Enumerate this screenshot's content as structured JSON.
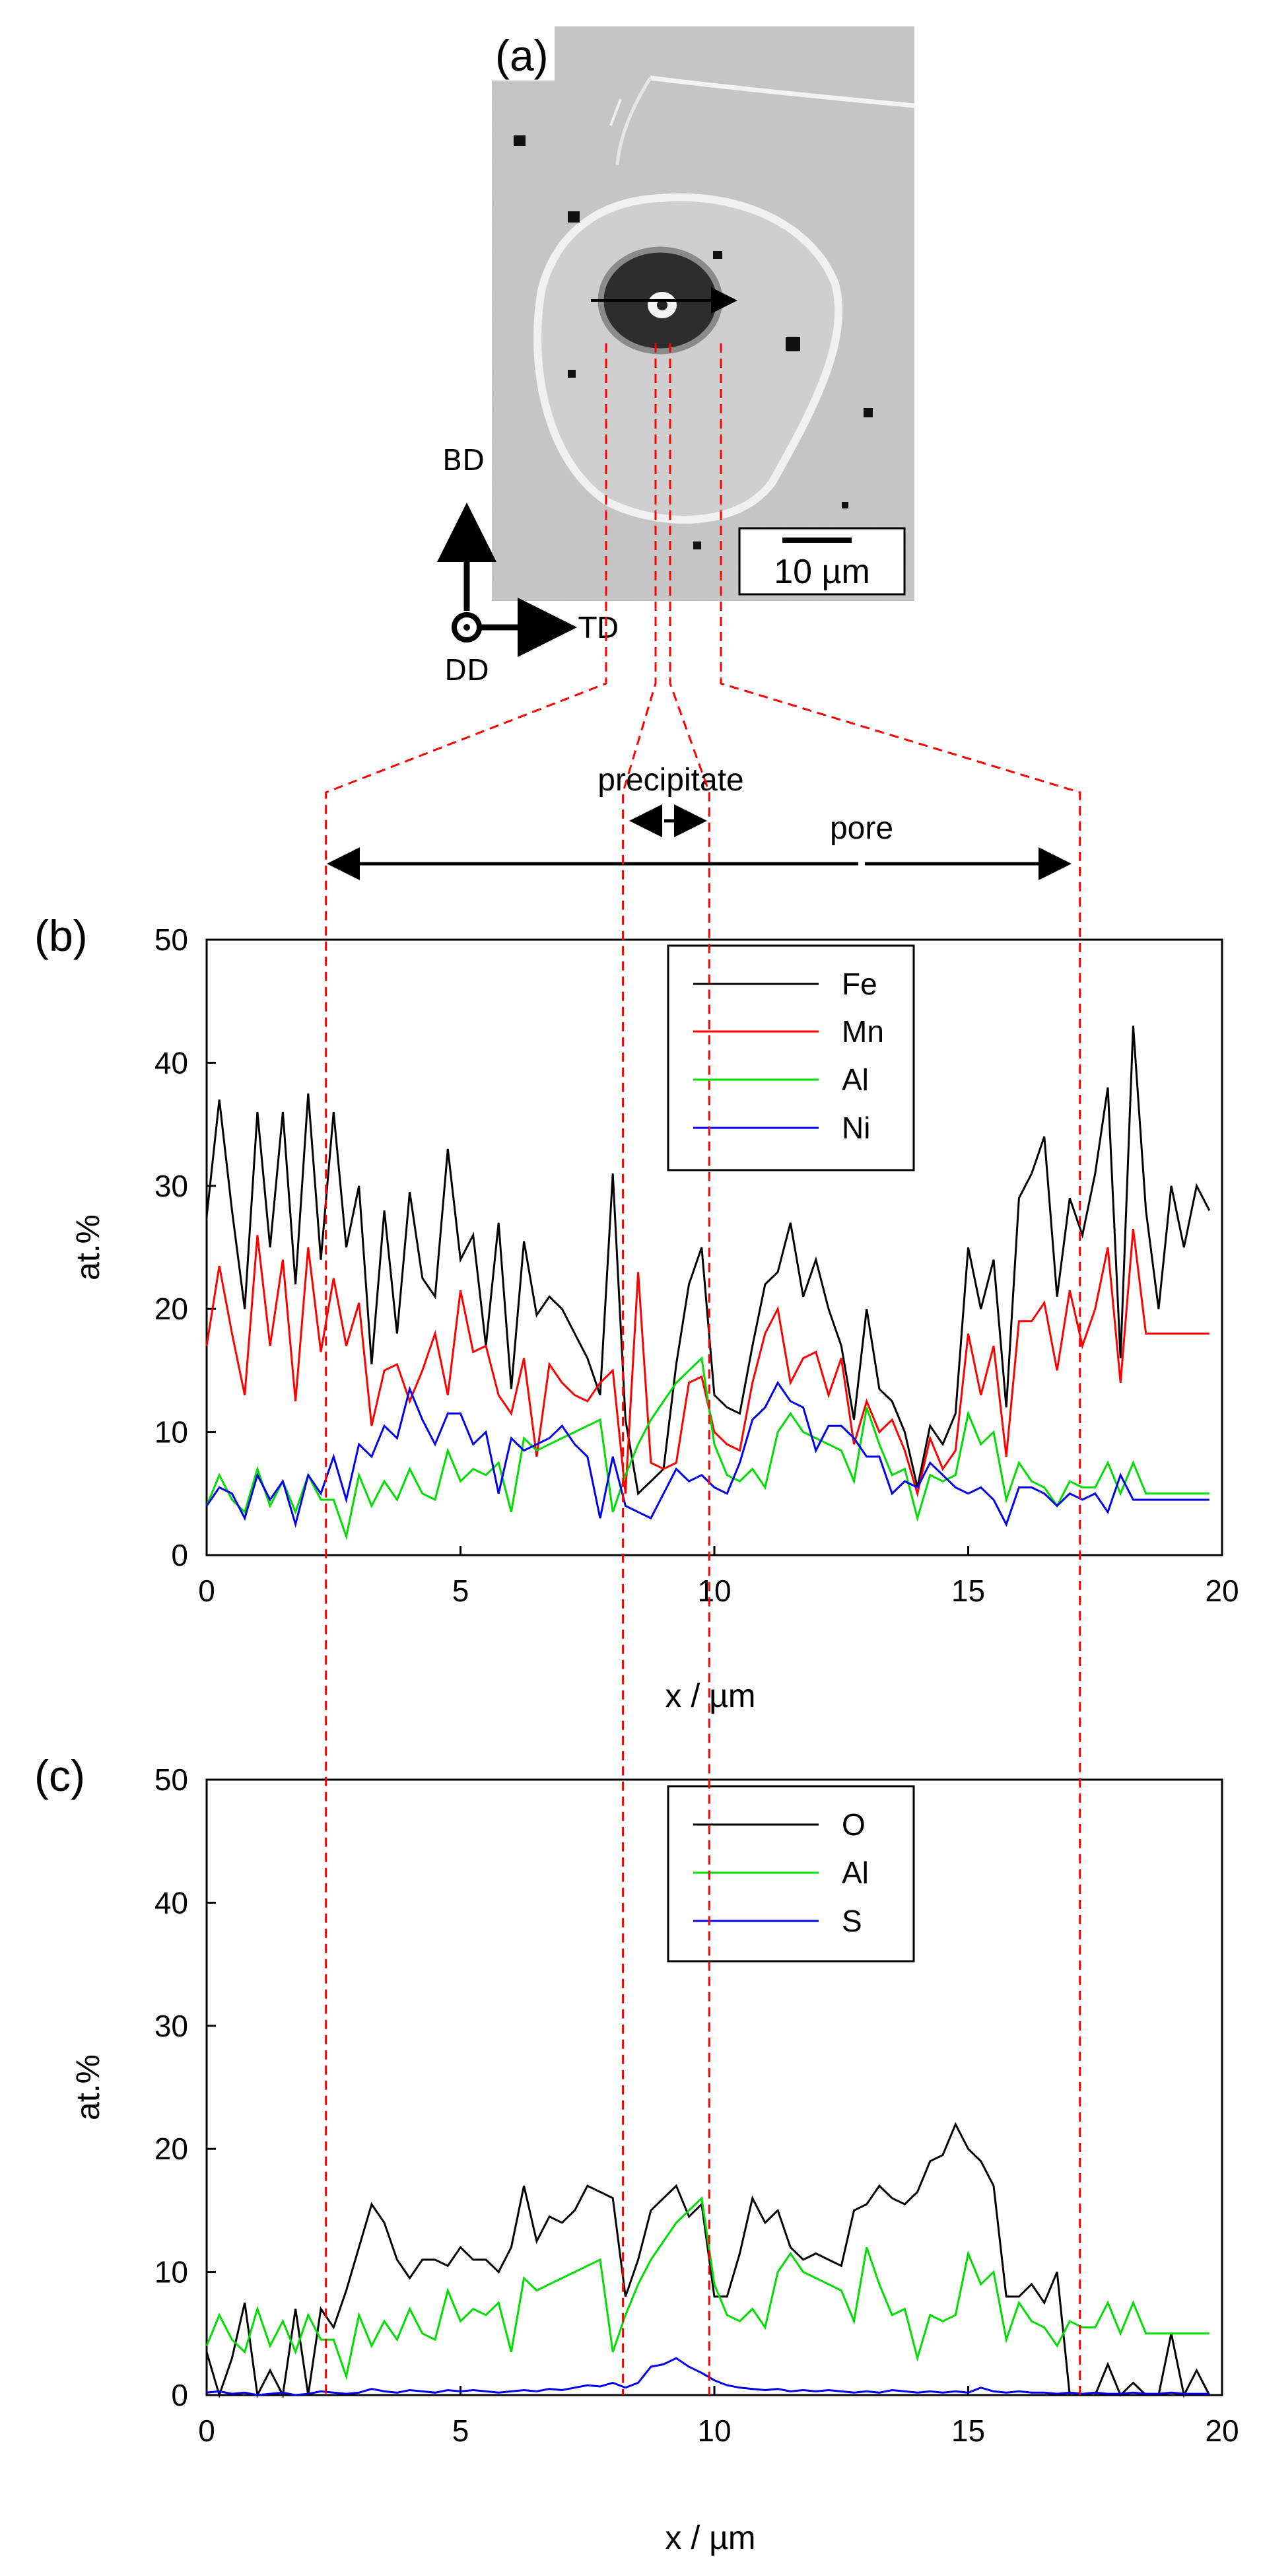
{
  "panel_a": {
    "label": "(a)",
    "scale_bar": "10 µm",
    "axes": {
      "up": "BD",
      "right": "TD",
      "out": "DD"
    }
  },
  "annotations": {
    "precipitate": "precipitate",
    "pore": "pore"
  },
  "boundaries_x": [
    2.35,
    8.2,
    9.9,
    17.2
  ],
  "colors": {
    "Fe": "#000000",
    "Mn": "#ff0000",
    "Al": "#00dd00",
    "Ni": "#0000ee",
    "O": "#000000",
    "S": "#0000ee",
    "guide": "#ff0000"
  },
  "chart_data": [
    {
      "type": "line",
      "label": "(b)",
      "xlabel": "x / µm",
      "ylabel": "at.%",
      "xlim": [
        0,
        20
      ],
      "ylim": [
        0,
        50
      ],
      "xticks": [
        0,
        5,
        10,
        15,
        20
      ],
      "yticks": [
        0,
        10,
        20,
        30,
        40,
        50
      ],
      "legend_position": "top-center",
      "x": [
        0.0,
        0.25,
        0.5,
        0.75,
        1.0,
        1.25,
        1.5,
        1.75,
        2.0,
        2.25,
        2.5,
        2.75,
        3.0,
        3.25,
        3.5,
        3.75,
        4.0,
        4.25,
        4.5,
        4.75,
        5.0,
        5.25,
        5.5,
        5.75,
        6.0,
        6.25,
        6.5,
        6.75,
        7.0,
        7.25,
        7.5,
        7.75,
        8.0,
        8.25,
        8.5,
        8.75,
        9.0,
        9.25,
        9.5,
        9.75,
        10.0,
        10.25,
        10.5,
        10.75,
        11.0,
        11.25,
        11.5,
        11.75,
        12.0,
        12.25,
        12.5,
        12.75,
        13.0,
        13.25,
        13.5,
        13.75,
        14.0,
        14.25,
        14.5,
        14.75,
        15.0,
        15.25,
        15.5,
        15.75,
        16.0,
        16.25,
        16.5,
        16.75,
        17.0,
        17.25,
        17.5,
        17.75,
        18.0,
        18.25,
        18.5,
        18.75,
        19.0,
        19.25,
        19.5,
        19.75
      ],
      "series": [
        {
          "name": "Fe",
          "values": [
            27.5,
            37.0,
            28.0,
            20.0,
            36.0,
            25.0,
            36.0,
            22.0,
            37.5,
            24.0,
            36.0,
            25.0,
            30.0,
            15.5,
            28.0,
            18.0,
            29.5,
            22.5,
            21.0,
            33.0,
            24.0,
            26.0,
            17.0,
            27.0,
            13.5,
            25.5,
            19.5,
            21.0,
            20.0,
            18.0,
            16.0,
            13.0,
            31.0,
            11.0,
            5.0,
            6.0,
            7.0,
            15.5,
            22.0,
            25.0,
            13.0,
            12.0,
            11.5,
            17.0,
            22.0,
            23.0,
            27.0,
            21.0,
            24.0,
            20.0,
            17.0,
            11.0,
            20.0,
            13.5,
            12.5,
            10.0,
            5.5,
            10.5,
            9.0,
            11.5,
            25.0,
            20.0,
            24.0,
            12.0,
            29.0,
            31.0,
            34.0,
            21.0,
            29.0,
            26.0,
            31.0,
            38.0,
            16.0,
            43.0,
            28.0,
            20.0,
            30.0,
            25.0,
            30.0,
            28.0
          ]
        },
        {
          "name": "Mn",
          "values": [
            17.0,
            23.5,
            18.0,
            13.0,
            26.0,
            17.0,
            24.0,
            12.5,
            25.0,
            16.5,
            22.5,
            17.0,
            20.5,
            10.5,
            15.0,
            15.5,
            12.5,
            15.0,
            18.0,
            13.0,
            21.5,
            16.5,
            17.0,
            13.0,
            11.5,
            16.0,
            8.0,
            15.5,
            14.0,
            13.0,
            12.5,
            14.0,
            15.0,
            5.0,
            23.0,
            7.5,
            7.0,
            7.5,
            14.0,
            14.5,
            10.0,
            9.0,
            8.5,
            14.0,
            18.0,
            20.0,
            14.0,
            16.0,
            16.5,
            13.0,
            16.0,
            9.0,
            12.5,
            10.0,
            11.0,
            8.5,
            5.0,
            9.5,
            7.0,
            8.5,
            18.0,
            13.0,
            17.0,
            8.0,
            19.0,
            19.0,
            20.5,
            15.0,
            21.5,
            17.0,
            20.0,
            25.0,
            14.0,
            26.5,
            18.0,
            18.0,
            18.0,
            18.0,
            18.0,
            18.0
          ]
        },
        {
          "name": "Al",
          "values": [
            4.0,
            6.5,
            4.5,
            3.5,
            7.0,
            4.0,
            6.0,
            3.5,
            6.5,
            4.5,
            4.5,
            1.5,
            6.5,
            4.0,
            6.0,
            4.5,
            7.0,
            5.0,
            4.5,
            8.5,
            6.0,
            7.0,
            6.5,
            7.5,
            3.5,
            9.5,
            8.5,
            9.0,
            9.5,
            10.0,
            10.5,
            11.0,
            3.5,
            6.5,
            9.0,
            11.0,
            12.5,
            14.0,
            15.0,
            16.0,
            9.0,
            6.5,
            6.0,
            7.0,
            5.5,
            10.0,
            11.5,
            10.0,
            9.5,
            9.0,
            8.5,
            6.0,
            12.0,
            9.0,
            6.5,
            7.0,
            3.0,
            6.5,
            6.0,
            6.5,
            11.5,
            9.0,
            10.0,
            4.5,
            7.5,
            6.0,
            5.5,
            4.0,
            6.0,
            5.5,
            5.5,
            7.5,
            5.0,
            7.5,
            5.0,
            5.0,
            5.0,
            5.0,
            5.0,
            5.0
          ]
        },
        {
          "name": "Ni",
          "values": [
            4.0,
            5.5,
            5.0,
            3.0,
            6.5,
            4.5,
            6.0,
            2.5,
            6.5,
            5.0,
            8.0,
            4.5,
            9.0,
            8.0,
            10.5,
            9.5,
            13.5,
            11.0,
            9.0,
            11.5,
            11.5,
            9.0,
            10.0,
            5.0,
            9.5,
            8.5,
            9.0,
            9.5,
            10.5,
            9.0,
            8.0,
            3.0,
            8.0,
            4.0,
            3.5,
            3.0,
            5.0,
            7.0,
            6.0,
            6.5,
            5.5,
            5.0,
            7.5,
            11.0,
            12.0,
            14.0,
            12.5,
            12.0,
            8.5,
            10.5,
            10.5,
            9.5,
            8.0,
            8.0,
            5.0,
            6.0,
            5.5,
            7.5,
            6.5,
            5.5,
            5.0,
            5.5,
            4.5,
            2.5,
            5.5,
            5.5,
            5.0,
            4.0,
            5.0,
            4.5,
            5.0,
            3.5,
            6.5,
            4.5,
            4.5,
            4.5,
            4.5,
            4.5,
            4.5,
            4.5
          ]
        }
      ]
    },
    {
      "type": "line",
      "label": "(c)",
      "xlabel": "x / µm",
      "ylabel": "at.%",
      "xlim": [
        0,
        20
      ],
      "ylim": [
        0,
        50
      ],
      "xticks": [
        0,
        5,
        10,
        15,
        20
      ],
      "yticks": [
        0,
        10,
        20,
        30,
        40,
        50
      ],
      "legend_position": "top-center",
      "x": [
        0.0,
        0.25,
        0.5,
        0.75,
        1.0,
        1.25,
        1.5,
        1.75,
        2.0,
        2.25,
        2.5,
        2.75,
        3.0,
        3.25,
        3.5,
        3.75,
        4.0,
        4.25,
        4.5,
        4.75,
        5.0,
        5.25,
        5.5,
        5.75,
        6.0,
        6.25,
        6.5,
        6.75,
        7.0,
        7.25,
        7.5,
        7.75,
        8.0,
        8.25,
        8.5,
        8.75,
        9.0,
        9.25,
        9.5,
        9.75,
        10.0,
        10.25,
        10.5,
        10.75,
        11.0,
        11.25,
        11.5,
        11.75,
        12.0,
        12.25,
        12.5,
        12.75,
        13.0,
        13.25,
        13.5,
        13.75,
        14.0,
        14.25,
        14.5,
        14.75,
        15.0,
        15.25,
        15.5,
        15.75,
        16.0,
        16.25,
        16.5,
        16.75,
        17.0,
        17.25,
        17.5,
        17.75,
        18.0,
        18.25,
        18.5,
        18.75,
        19.0,
        19.25,
        19.5,
        19.75
      ],
      "series": [
        {
          "name": "O",
          "values": [
            3.5,
            0.0,
            3.0,
            7.5,
            0.0,
            2.0,
            0.0,
            7.0,
            0.0,
            7.0,
            5.5,
            8.5,
            12.0,
            15.5,
            14.0,
            11.0,
            9.5,
            11.0,
            11.0,
            10.5,
            12.0,
            11.0,
            11.0,
            10.0,
            12.0,
            17.0,
            12.5,
            14.5,
            14.0,
            15.0,
            17.0,
            16.5,
            16.0,
            8.0,
            11.0,
            15.0,
            16.0,
            17.0,
            14.5,
            15.5,
            8.0,
            8.0,
            11.5,
            16.0,
            14.0,
            15.0,
            12.0,
            11.0,
            11.5,
            11.0,
            10.5,
            15.0,
            15.5,
            17.0,
            16.0,
            15.5,
            16.5,
            19.0,
            19.5,
            22.0,
            20.0,
            19.0,
            17.0,
            8.0,
            8.0,
            9.0,
            7.5,
            10.0,
            0.0,
            0.0,
            0.0,
            2.5,
            0.0,
            1.0,
            0.0,
            0.0,
            5.0,
            0.0,
            2.0,
            0.0
          ]
        },
        {
          "name": "Al",
          "values": [
            4.0,
            6.5,
            4.5,
            3.5,
            7.0,
            4.0,
            6.0,
            3.5,
            6.5,
            4.5,
            4.5,
            1.5,
            6.5,
            4.0,
            6.0,
            4.5,
            7.0,
            5.0,
            4.5,
            8.5,
            6.0,
            7.0,
            6.5,
            7.5,
            3.5,
            9.5,
            8.5,
            9.0,
            9.5,
            10.0,
            10.5,
            11.0,
            3.5,
            6.5,
            9.0,
            11.0,
            12.5,
            14.0,
            15.0,
            16.0,
            9.0,
            6.5,
            6.0,
            7.0,
            5.5,
            10.0,
            11.5,
            10.0,
            9.5,
            9.0,
            8.5,
            6.0,
            12.0,
            9.0,
            6.5,
            7.0,
            3.0,
            6.5,
            6.0,
            6.5,
            11.5,
            9.0,
            10.0,
            4.5,
            7.5,
            6.0,
            5.5,
            4.0,
            6.0,
            5.5,
            5.5,
            7.5,
            5.0,
            7.5,
            5.0,
            5.0,
            5.0,
            5.0,
            5.0,
            5.0
          ]
        },
        {
          "name": "S",
          "values": [
            0.2,
            0.3,
            0.1,
            0.2,
            0.0,
            0.1,
            0.2,
            0.0,
            0.1,
            0.3,
            0.2,
            0.1,
            0.2,
            0.5,
            0.3,
            0.2,
            0.4,
            0.3,
            0.2,
            0.4,
            0.3,
            0.4,
            0.3,
            0.2,
            0.3,
            0.4,
            0.3,
            0.5,
            0.4,
            0.6,
            0.8,
            0.7,
            1.0,
            0.6,
            1.0,
            2.3,
            2.5,
            3.0,
            2.3,
            1.8,
            1.2,
            0.8,
            0.6,
            0.5,
            0.4,
            0.5,
            0.3,
            0.4,
            0.3,
            0.4,
            0.3,
            0.2,
            0.3,
            0.2,
            0.4,
            0.3,
            0.2,
            0.3,
            0.2,
            0.3,
            0.2,
            0.6,
            0.3,
            0.2,
            0.3,
            0.2,
            0.2,
            0.1,
            0.2,
            0.1,
            0.2,
            0.1,
            0.1,
            0.2,
            0.1,
            0.1,
            0.2,
            0.1,
            0.1,
            0.1
          ]
        }
      ]
    }
  ]
}
